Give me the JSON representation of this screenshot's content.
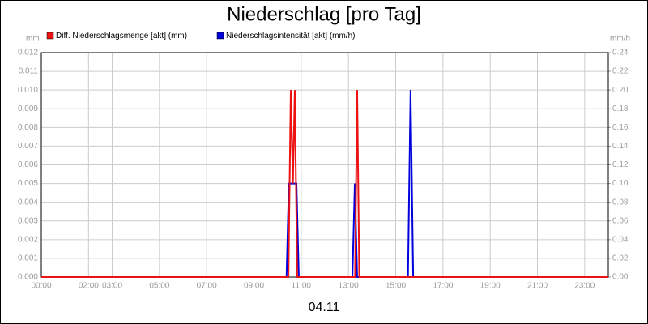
{
  "chart_data": {
    "type": "line",
    "title": "Niederschlag [pro Tag]",
    "x_axis_label": "04.11",
    "y_axis_label": "mm",
    "y2_axis_label": "mm/h",
    "xlim": [
      0,
      24
    ],
    "xticks": [
      {
        "value": 0,
        "label": "00:00"
      },
      {
        "value": 2,
        "label": "02:00"
      },
      {
        "value": 3,
        "label": "03:00"
      },
      {
        "value": 5,
        "label": "05:00"
      },
      {
        "value": 7,
        "label": "07:00"
      },
      {
        "value": 9,
        "label": "09:00"
      },
      {
        "value": 11,
        "label": "11:00"
      },
      {
        "value": 13,
        "label": "13:00"
      },
      {
        "value": 15,
        "label": "15:00"
      },
      {
        "value": 17,
        "label": "17:00"
      },
      {
        "value": 19,
        "label": "19:00"
      },
      {
        "value": 21,
        "label": "21:00"
      },
      {
        "value": 23,
        "label": "23:00"
      }
    ],
    "ylim": [
      0,
      0.012
    ],
    "yticks": [
      {
        "value": 0,
        "label": "0.000"
      },
      {
        "value": 0.001,
        "label": "0.001"
      },
      {
        "value": 0.002,
        "label": "0.002"
      },
      {
        "value": 0.003,
        "label": "0.003"
      },
      {
        "value": 0.004,
        "label": "0.004"
      },
      {
        "value": 0.005,
        "label": "0.005"
      },
      {
        "value": 0.006,
        "label": "0.006"
      },
      {
        "value": 0.007,
        "label": "0.007"
      },
      {
        "value": 0.008,
        "label": "0.008"
      },
      {
        "value": 0.009,
        "label": "0.009"
      },
      {
        "value": 0.01,
        "label": "0.010"
      },
      {
        "value": 0.011,
        "label": "0.011"
      },
      {
        "value": 0.012,
        "label": "0.012"
      }
    ],
    "y2lim": [
      0,
      0.24
    ],
    "y2ticks": [
      {
        "value": 0,
        "label": "0.00"
      },
      {
        "value": 0.02,
        "label": "0.02"
      },
      {
        "value": 0.04,
        "label": "0.04"
      },
      {
        "value": 0.06,
        "label": "0.06"
      },
      {
        "value": 0.08,
        "label": "0.08"
      },
      {
        "value": 0.1,
        "label": "0.10"
      },
      {
        "value": 0.12,
        "label": "0.12"
      },
      {
        "value": 0.14,
        "label": "0.14"
      },
      {
        "value": 0.16,
        "label": "0.16"
      },
      {
        "value": 0.18,
        "label": "0.18"
      },
      {
        "value": 0.2,
        "label": "0.20"
      },
      {
        "value": 0.22,
        "label": "0.22"
      },
      {
        "value": 0.24,
        "label": "0.24"
      }
    ],
    "grid": true,
    "series": [
      {
        "name": "Niederschlagsintensität [akt] (mm/h)",
        "color": "#0000dd",
        "axis": "y2",
        "x": [
          0,
          10.38,
          10.48,
          10.8,
          10.9,
          13.17,
          13.27,
          13.37,
          15.52,
          15.63,
          15.74,
          24
        ],
        "values": [
          0,
          0,
          0.1,
          0.1,
          0,
          0,
          0.1,
          0,
          0,
          0.2,
          0,
          0
        ]
      },
      {
        "name": "Diff. Niederschlagsmenge [akt] (mm)",
        "color": "#ee1111",
        "x": [
          0,
          10.46,
          10.56,
          10.65,
          10.73,
          10.83,
          13.28,
          13.37,
          13.46,
          24
        ],
        "values": [
          0,
          0,
          0.01,
          0.005,
          0.01,
          0,
          0,
          0.01,
          0,
          0
        ]
      }
    ]
  }
}
